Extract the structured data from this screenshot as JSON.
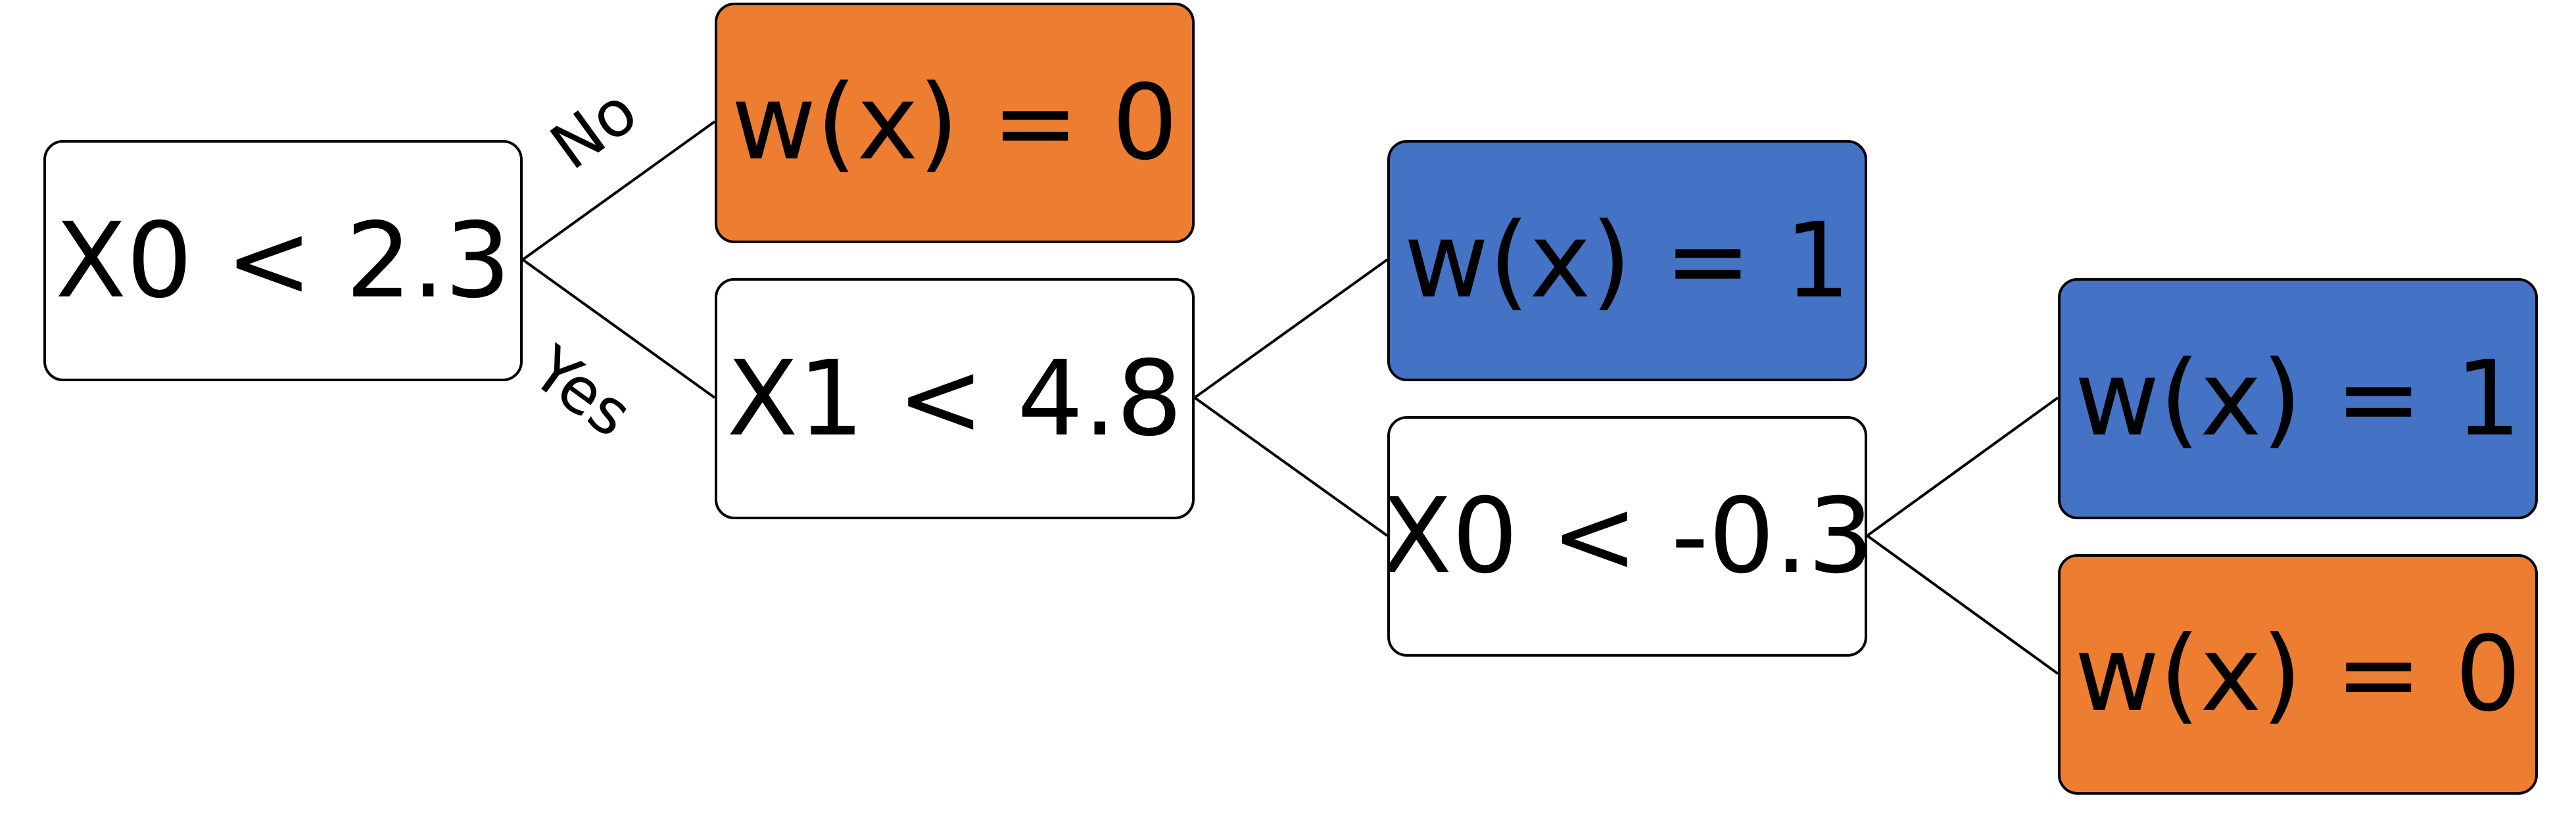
{
  "nodes": {
    "root": {
      "text": "X0 < 2.3",
      "kind": "decision"
    },
    "leaf_no": {
      "text": "w(x) = 0",
      "kind": "leaf",
      "color": "#ED7D31"
    },
    "split_x1": {
      "text": "X1 < 4.8",
      "kind": "decision"
    },
    "leaf_blue_top": {
      "text": "w(x) = 1",
      "kind": "leaf",
      "color": "#4472C4"
    },
    "split_x0_neg": {
      "text": "X0 < -0.3",
      "kind": "decision"
    },
    "leaf_blue_bottom": {
      "text": "w(x) = 1",
      "kind": "leaf",
      "color": "#4472C4"
    },
    "leaf_orange_bottom": {
      "text": "w(x) = 0",
      "kind": "leaf",
      "color": "#ED7D31"
    }
  },
  "edge_labels": {
    "no": "No",
    "yes": "Yes"
  },
  "colors": {
    "leaf_zero": "#ED7D31",
    "leaf_one": "#4472C4",
    "decision_fill": "#FFFFFF",
    "stroke": "#000000"
  }
}
